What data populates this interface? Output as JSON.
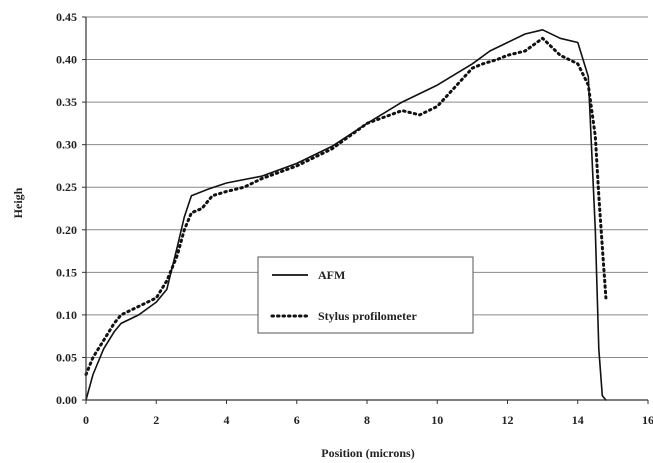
{
  "chart_data": {
    "type": "line",
    "xlabel": "Position (microns)",
    "ylabel": "Heigh",
    "xlim": [
      0,
      16
    ],
    "ylim": [
      0,
      0.45
    ],
    "xticks": [
      "0",
      "2",
      "4",
      "6",
      "8",
      "10",
      "12",
      "14",
      "16"
    ],
    "yticks": [
      "0.00",
      "0.05",
      "0.10",
      "0.15",
      "0.20",
      "0.25",
      "0.30",
      "0.35",
      "0.40",
      "0.45"
    ],
    "grid": "horizontal",
    "legend_position": "center",
    "series": [
      {
        "name": "AFM",
        "style": "solid",
        "color": "#111111",
        "x": [
          0,
          0.2,
          0.5,
          0.8,
          1.0,
          1.5,
          2.0,
          2.3,
          2.6,
          2.8,
          3.0,
          3.5,
          4.0,
          5.0,
          6.0,
          7.0,
          8.0,
          9.0,
          10.0,
          11.0,
          11.5,
          12.0,
          12.5,
          13.0,
          13.5,
          14.0,
          14.3,
          14.5,
          14.6,
          14.7,
          14.8
        ],
        "y": [
          0.0,
          0.03,
          0.06,
          0.08,
          0.09,
          0.1,
          0.115,
          0.13,
          0.18,
          0.215,
          0.24,
          0.248,
          0.255,
          0.263,
          0.278,
          0.298,
          0.325,
          0.35,
          0.37,
          0.395,
          0.41,
          0.42,
          0.43,
          0.435,
          0.425,
          0.42,
          0.38,
          0.2,
          0.06,
          0.005,
          0.0
        ]
      },
      {
        "name": "Stylus profilometer",
        "style": "dotted",
        "color": "#111111",
        "x": [
          0,
          0.2,
          0.5,
          0.8,
          1.0,
          1.5,
          2.0,
          2.3,
          2.6,
          2.8,
          3.0,
          3.3,
          3.6,
          4.0,
          4.5,
          5.0,
          6.0,
          7.0,
          8.0,
          9.0,
          9.5,
          10.0,
          11.0,
          11.3,
          11.7,
          12.0,
          12.5,
          13.0,
          13.5,
          14.0,
          14.3,
          14.5,
          14.6,
          14.7,
          14.8
        ],
        "y": [
          0.03,
          0.05,
          0.07,
          0.09,
          0.1,
          0.11,
          0.12,
          0.14,
          0.17,
          0.2,
          0.22,
          0.225,
          0.24,
          0.245,
          0.25,
          0.26,
          0.275,
          0.295,
          0.325,
          0.34,
          0.335,
          0.345,
          0.39,
          0.395,
          0.4,
          0.405,
          0.41,
          0.425,
          0.405,
          0.395,
          0.37,
          0.31,
          0.24,
          0.18,
          0.12
        ]
      }
    ]
  }
}
